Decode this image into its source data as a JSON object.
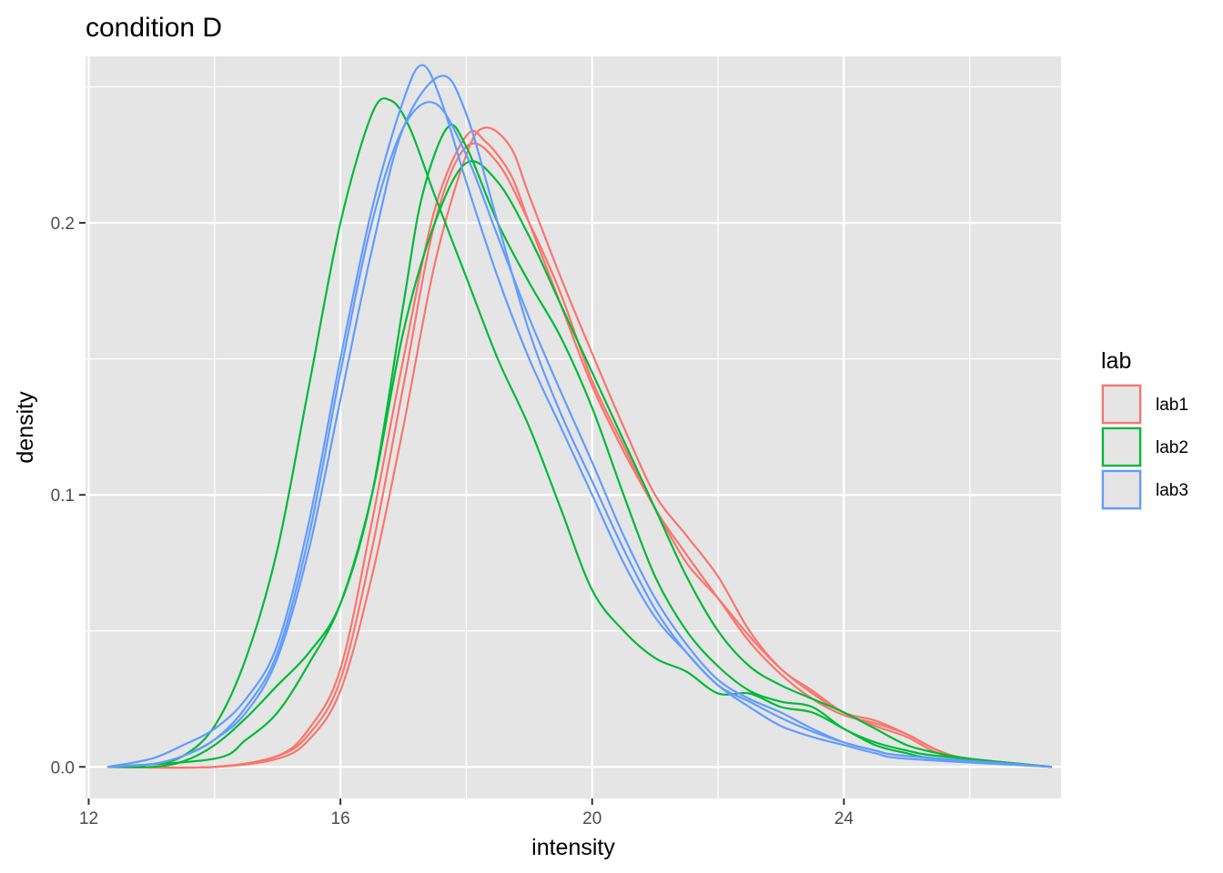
{
  "chart_data": {
    "type": "line",
    "title": "condition D",
    "xlabel": "intensity",
    "ylabel": "density",
    "xlim": [
      11.95,
      27.45
    ],
    "ylim": [
      -0.0116,
      0.2612
    ],
    "x_ticks": [
      12,
      16,
      20,
      24
    ],
    "x_tick_labels": [
      "12",
      "16",
      "20",
      "24"
    ],
    "y_ticks": [
      0.0,
      0.1,
      0.2
    ],
    "y_tick_labels": [
      "0.0",
      "0.1",
      "0.2"
    ],
    "grid": true,
    "panel_background": "#e5e5e5",
    "legend": {
      "title": "lab",
      "position": "right",
      "entries": [
        {
          "label": "lab1",
          "color": "#f8766d"
        },
        {
          "label": "lab2",
          "color": "#00ba38"
        },
        {
          "label": "lab3",
          "color": "#619cff"
        }
      ]
    },
    "series": [
      {
        "group": "lab1",
        "color": "#f8766d",
        "points": [
          [
            12.3,
            0
          ],
          [
            14,
            0
          ],
          [
            15,
            0.004
          ],
          [
            15.5,
            0.012
          ],
          [
            16,
            0.032
          ],
          [
            16.5,
            0.08
          ],
          [
            17,
            0.14
          ],
          [
            17.5,
            0.2
          ],
          [
            18,
            0.228
          ],
          [
            18.5,
            0.222
          ],
          [
            19,
            0.2
          ],
          [
            19.5,
            0.174
          ],
          [
            20,
            0.142
          ],
          [
            20.5,
            0.118
          ],
          [
            21,
            0.095
          ],
          [
            21.5,
            0.078
          ],
          [
            22,
            0.062
          ],
          [
            22.5,
            0.046
          ],
          [
            23,
            0.034
          ],
          [
            23.5,
            0.025
          ],
          [
            24,
            0.019
          ],
          [
            24.5,
            0.016
          ],
          [
            25,
            0.012
          ],
          [
            25.5,
            0.006
          ],
          [
            26,
            0.003
          ],
          [
            27.3,
            0
          ]
        ]
      },
      {
        "group": "lab1",
        "color": "#f8766d",
        "points": [
          [
            12.3,
            0
          ],
          [
            14,
            0
          ],
          [
            15,
            0.003
          ],
          [
            15.5,
            0.01
          ],
          [
            16,
            0.028
          ],
          [
            16.5,
            0.07
          ],
          [
            17,
            0.125
          ],
          [
            17.5,
            0.185
          ],
          [
            18,
            0.225
          ],
          [
            18.3,
            0.235
          ],
          [
            18.7,
            0.228
          ],
          [
            19,
            0.21
          ],
          [
            19.5,
            0.18
          ],
          [
            20,
            0.152
          ],
          [
            20.5,
            0.125
          ],
          [
            21,
            0.1
          ],
          [
            21.5,
            0.085
          ],
          [
            22,
            0.07
          ],
          [
            22.5,
            0.05
          ],
          [
            23,
            0.036
          ],
          [
            23.5,
            0.028
          ],
          [
            24,
            0.02
          ],
          [
            24.5,
            0.017
          ],
          [
            25,
            0.012
          ],
          [
            25.5,
            0.006
          ],
          [
            26,
            0.003
          ],
          [
            27.3,
            0
          ]
        ]
      },
      {
        "group": "lab1",
        "color": "#f8766d",
        "points": [
          [
            12.3,
            0
          ],
          [
            14,
            0
          ],
          [
            15,
            0.004
          ],
          [
            15.5,
            0.014
          ],
          [
            16,
            0.036
          ],
          [
            16.5,
            0.09
          ],
          [
            17,
            0.15
          ],
          [
            17.5,
            0.205
          ],
          [
            18,
            0.232
          ],
          [
            18.3,
            0.23
          ],
          [
            18.7,
            0.218
          ],
          [
            19,
            0.2
          ],
          [
            19.5,
            0.17
          ],
          [
            20,
            0.14
          ],
          [
            20.5,
            0.116
          ],
          [
            21,
            0.095
          ],
          [
            21.5,
            0.075
          ],
          [
            22,
            0.062
          ],
          [
            22.5,
            0.048
          ],
          [
            23,
            0.036
          ],
          [
            23.5,
            0.027
          ],
          [
            24,
            0.02
          ],
          [
            24.5,
            0.015
          ],
          [
            25,
            0.011
          ],
          [
            25.5,
            0.005
          ],
          [
            26,
            0.003
          ],
          [
            27.3,
            0
          ]
        ]
      },
      {
        "group": "lab2",
        "color": "#00ba38",
        "points": [
          [
            12.3,
            0
          ],
          [
            13,
            0.001
          ],
          [
            13.5,
            0.004
          ],
          [
            14,
            0.015
          ],
          [
            14.5,
            0.04
          ],
          [
            15,
            0.08
          ],
          [
            15.5,
            0.14
          ],
          [
            16,
            0.2
          ],
          [
            16.5,
            0.24
          ],
          [
            16.8,
            0.245
          ],
          [
            17.1,
            0.235
          ],
          [
            17.5,
            0.21
          ],
          [
            18,
            0.18
          ],
          [
            18.5,
            0.15
          ],
          [
            19,
            0.125
          ],
          [
            19.5,
            0.095
          ],
          [
            20,
            0.065
          ],
          [
            20.5,
            0.05
          ],
          [
            21,
            0.04
          ],
          [
            21.5,
            0.035
          ],
          [
            22,
            0.027
          ],
          [
            22.5,
            0.027
          ],
          [
            23,
            0.022
          ],
          [
            23.5,
            0.02
          ],
          [
            24,
            0.014
          ],
          [
            24.5,
            0.008
          ],
          [
            25,
            0.005
          ],
          [
            25.5,
            0.003
          ],
          [
            27.3,
            0
          ]
        ]
      },
      {
        "group": "lab2",
        "color": "#00ba38",
        "points": [
          [
            12.3,
            0
          ],
          [
            13,
            0
          ],
          [
            13.5,
            0.002
          ],
          [
            14,
            0.008
          ],
          [
            14.5,
            0.018
          ],
          [
            15,
            0.03
          ],
          [
            15.5,
            0.042
          ],
          [
            16,
            0.06
          ],
          [
            16.5,
            0.1
          ],
          [
            17,
            0.17
          ],
          [
            17.3,
            0.21
          ],
          [
            17.7,
            0.235
          ],
          [
            18,
            0.228
          ],
          [
            18.5,
            0.2
          ],
          [
            19,
            0.178
          ],
          [
            19.5,
            0.158
          ],
          [
            20,
            0.132
          ],
          [
            20.5,
            0.1
          ],
          [
            21,
            0.07
          ],
          [
            21.5,
            0.05
          ],
          [
            22,
            0.037
          ],
          [
            22.5,
            0.028
          ],
          [
            23,
            0.024
          ],
          [
            23.5,
            0.022
          ],
          [
            24,
            0.014
          ],
          [
            24.5,
            0.009
          ],
          [
            25,
            0.006
          ],
          [
            25.5,
            0.004
          ],
          [
            27.3,
            0
          ]
        ]
      },
      {
        "group": "lab2",
        "color": "#00ba38",
        "points": [
          [
            12.3,
            0
          ],
          [
            14,
            0.003
          ],
          [
            14.5,
            0.01
          ],
          [
            15,
            0.02
          ],
          [
            15.5,
            0.038
          ],
          [
            16,
            0.06
          ],
          [
            16.5,
            0.1
          ],
          [
            17,
            0.16
          ],
          [
            17.5,
            0.2
          ],
          [
            18,
            0.222
          ],
          [
            18.5,
            0.215
          ],
          [
            19,
            0.195
          ],
          [
            19.5,
            0.17
          ],
          [
            20,
            0.145
          ],
          [
            20.5,
            0.12
          ],
          [
            21,
            0.095
          ],
          [
            21.5,
            0.07
          ],
          [
            22,
            0.05
          ],
          [
            22.5,
            0.037
          ],
          [
            23,
            0.03
          ],
          [
            23.5,
            0.025
          ],
          [
            24,
            0.02
          ],
          [
            24.5,
            0.014
          ],
          [
            25,
            0.008
          ],
          [
            25.5,
            0.005
          ],
          [
            26,
            0.003
          ],
          [
            27.3,
            0
          ]
        ]
      },
      {
        "group": "lab3",
        "color": "#619cff",
        "points": [
          [
            12.3,
            0
          ],
          [
            13,
            0.003
          ],
          [
            13.5,
            0.008
          ],
          [
            14,
            0.014
          ],
          [
            14.5,
            0.025
          ],
          [
            15,
            0.045
          ],
          [
            15.5,
            0.09
          ],
          [
            16,
            0.15
          ],
          [
            16.5,
            0.205
          ],
          [
            17,
            0.245
          ],
          [
            17.3,
            0.258
          ],
          [
            17.6,
            0.245
          ],
          [
            18,
            0.215
          ],
          [
            18.5,
            0.18
          ],
          [
            19,
            0.15
          ],
          [
            19.5,
            0.125
          ],
          [
            20,
            0.1
          ],
          [
            20.5,
            0.075
          ],
          [
            21,
            0.055
          ],
          [
            21.5,
            0.042
          ],
          [
            22,
            0.03
          ],
          [
            22.5,
            0.024
          ],
          [
            23,
            0.018
          ],
          [
            23.5,
            0.013
          ],
          [
            24,
            0.009
          ],
          [
            24.5,
            0.006
          ],
          [
            25,
            0.004
          ],
          [
            27.3,
            0
          ]
        ]
      },
      {
        "group": "lab3",
        "color": "#619cff",
        "points": [
          [
            12.3,
            0
          ],
          [
            13,
            0.001
          ],
          [
            13.5,
            0.004
          ],
          [
            14,
            0.01
          ],
          [
            14.5,
            0.02
          ],
          [
            15,
            0.04
          ],
          [
            15.5,
            0.08
          ],
          [
            16,
            0.135
          ],
          [
            16.5,
            0.19
          ],
          [
            17,
            0.235
          ],
          [
            17.6,
            0.254
          ],
          [
            18,
            0.24
          ],
          [
            18.5,
            0.2
          ],
          [
            19,
            0.16
          ],
          [
            19.5,
            0.13
          ],
          [
            20,
            0.105
          ],
          [
            20.5,
            0.08
          ],
          [
            21,
            0.058
          ],
          [
            21.5,
            0.042
          ],
          [
            22,
            0.03
          ],
          [
            22.5,
            0.022
          ],
          [
            23,
            0.015
          ],
          [
            23.5,
            0.011
          ],
          [
            24,
            0.008
          ],
          [
            24.5,
            0.005
          ],
          [
            25,
            0.003
          ],
          [
            27.3,
            0
          ]
        ]
      },
      {
        "group": "lab3",
        "color": "#619cff",
        "points": [
          [
            12.3,
            0
          ],
          [
            13,
            0.001
          ],
          [
            13.5,
            0.004
          ],
          [
            14,
            0.01
          ],
          [
            14.5,
            0.022
          ],
          [
            15,
            0.042
          ],
          [
            15.5,
            0.085
          ],
          [
            16,
            0.145
          ],
          [
            16.5,
            0.2
          ],
          [
            17,
            0.235
          ],
          [
            17.5,
            0.244
          ],
          [
            18,
            0.225
          ],
          [
            18.5,
            0.195
          ],
          [
            19,
            0.165
          ],
          [
            19.5,
            0.138
          ],
          [
            20,
            0.112
          ],
          [
            20.5,
            0.085
          ],
          [
            21,
            0.062
          ],
          [
            21.5,
            0.045
          ],
          [
            22,
            0.032
          ],
          [
            22.5,
            0.025
          ],
          [
            23,
            0.02
          ],
          [
            23.5,
            0.014
          ],
          [
            24,
            0.009
          ],
          [
            24.5,
            0.006
          ],
          [
            25,
            0.004
          ],
          [
            27.3,
            0
          ]
        ]
      }
    ]
  }
}
